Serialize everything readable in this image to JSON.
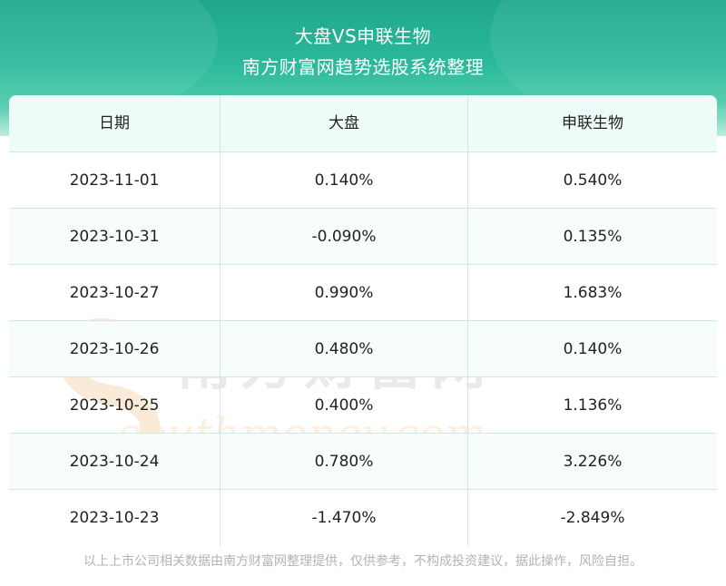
{
  "header": {
    "title": "大盘VS申联生物",
    "subtitle": "南方财富网趋势选股系统整理"
  },
  "table": {
    "columns": [
      "日期",
      "大盘",
      "申联生物"
    ],
    "rows": [
      [
        "2023-11-01",
        "0.140%",
        "0.540%"
      ],
      [
        "2023-10-31",
        "-0.090%",
        "0.135%"
      ],
      [
        "2023-10-27",
        "0.990%",
        "1.683%"
      ],
      [
        "2023-10-26",
        "0.480%",
        "0.140%"
      ],
      [
        "2023-10-25",
        "0.400%",
        "1.136%"
      ],
      [
        "2023-10-24",
        "0.780%",
        "3.226%"
      ],
      [
        "2023-10-23",
        "-1.470%",
        "-2.849%"
      ]
    ]
  },
  "watermark": {
    "cn": "南方财富网",
    "en": "southmoney.com"
  },
  "footer": "以上上市公司相关数据由南方财富网整理提供，仅供参考，不构成投资建议，据此操作，风险自担。",
  "colors": {
    "header_bg": "#2ab89a",
    "header_bg_light": "#bfece0",
    "table_head_bg": "#eefcf9",
    "grid_line": "#cde9e3",
    "footer_text": "#b3b3b3"
  }
}
